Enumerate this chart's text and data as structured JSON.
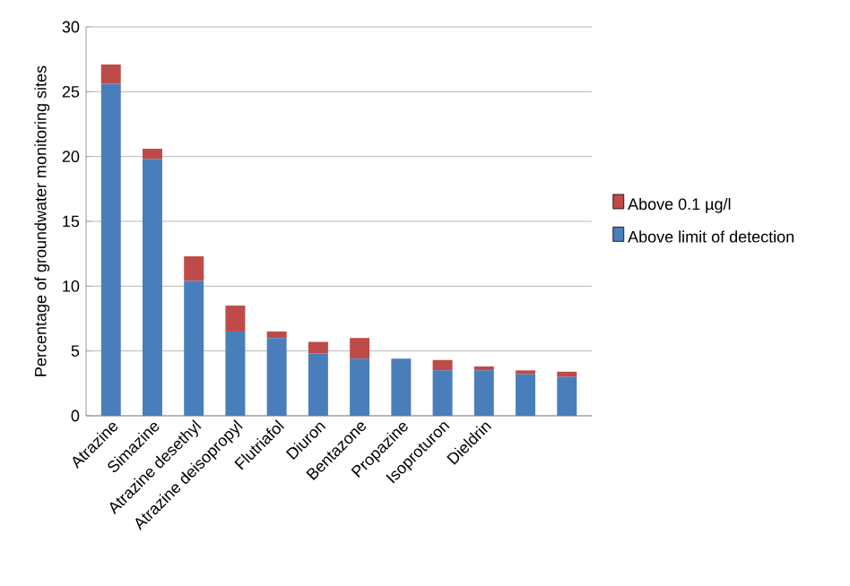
{
  "chart_data": {
    "type": "bar",
    "stacked": true,
    "ylabel": "Percentage of groundwater  monitoring sites",
    "categories": [
      "Atrazine",
      "Simazine",
      "Atrazine desethyl",
      "Atrazine deisopropyl",
      "Flutriafol",
      "Diuron",
      "Bentazone",
      "Propazine",
      "Isoproturon",
      "Dieldrin",
      null,
      null
    ],
    "series": [
      {
        "name": "Above limit of detection",
        "color": "#4a7ebb",
        "values": [
          25.6,
          19.8,
          10.4,
          6.5,
          6.0,
          4.8,
          4.4,
          4.4,
          3.5,
          3.5,
          3.2,
          3.0
        ]
      },
      {
        "name": "Above 0.1 µg/l",
        "color": "#be4b48",
        "values": [
          1.5,
          0.8,
          1.9,
          2.0,
          0.5,
          0.9,
          1.6,
          0,
          0.8,
          0.3,
          0.3,
          0.4
        ]
      }
    ],
    "ylim": [
      0,
      30
    ],
    "yticks": [
      0,
      5,
      10,
      15,
      20,
      25,
      30
    ],
    "grid": "y",
    "legend": "right"
  }
}
